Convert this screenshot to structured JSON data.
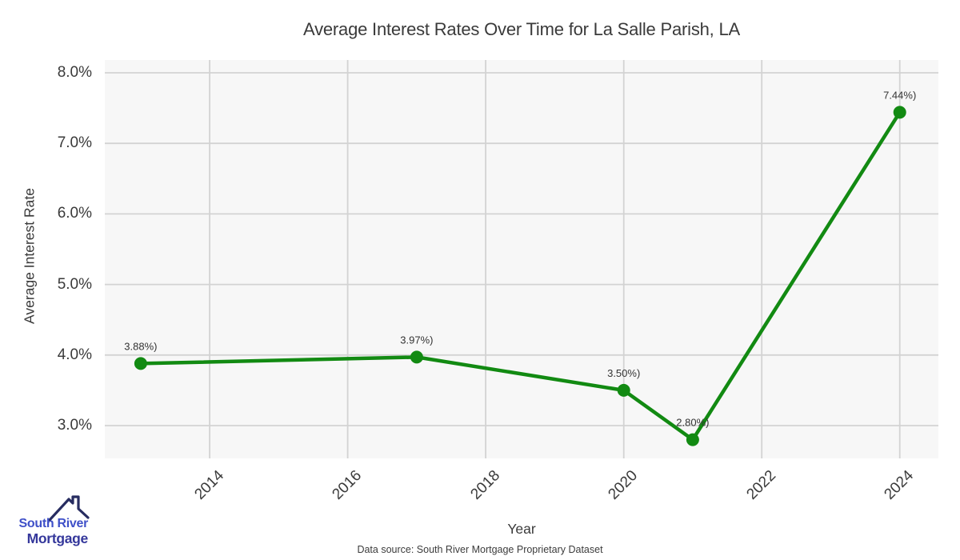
{
  "header": {
    "title": "Average Interest Rates Over Time for La Salle Parish, LA"
  },
  "axes": {
    "x_label": "Year",
    "y_label": "Average Interest Rate"
  },
  "footer": {
    "source": "Data source: South River Mortgage Proprietary Dataset"
  },
  "logo": {
    "line1": "South River",
    "line2": "Mortgage"
  },
  "colors": {
    "series_green": "#128a12",
    "plot_background": "#f7f7f7",
    "gridline": "#d3d3d3",
    "text_dark": "#3a3a3a",
    "logo_blue": "#3f50c8",
    "logo_navy_text": "#34379b",
    "logo_roof_navy": "#272c60"
  },
  "chart_data": {
    "type": "line",
    "title": "Average Interest Rates Over Time for La Salle Parish, LA",
    "xlabel": "Year",
    "ylabel": "Average Interest Rate",
    "x": [
      2013,
      2017,
      2020,
      2021,
      2024
    ],
    "values": [
      3.88,
      3.97,
      3.5,
      2.8,
      7.44
    ],
    "point_labels": [
      "3.88%)",
      "3.97%)",
      "3.50%)",
      "2.80%)",
      "7.44%)"
    ],
    "xtick_values": [
      2014,
      2016,
      2018,
      2020,
      2022,
      2024
    ],
    "xtick_labels": [
      "2014",
      "2016",
      "2018",
      "2020",
      "2022",
      "2024"
    ],
    "ytick_values": [
      3,
      4,
      5,
      6,
      7,
      8
    ],
    "ytick_labels": [
      "3.0%",
      "4.0%",
      "5.0%",
      "6.0%",
      "7.0%",
      "8.0%"
    ],
    "xlim": [
      2012.48,
      2024.56
    ],
    "ylim": [
      2.535,
      8.181
    ],
    "grid": true,
    "legend_position": "none",
    "marker_radius": 8,
    "line_width": 4.5
  }
}
